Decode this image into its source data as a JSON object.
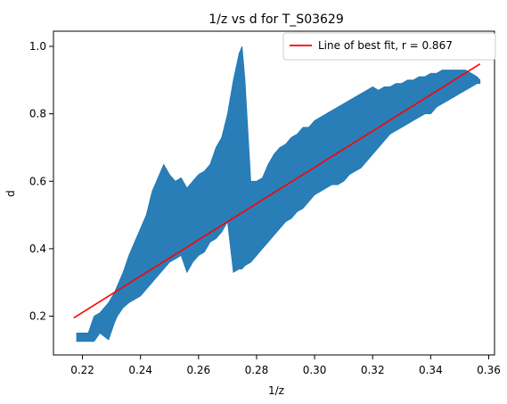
{
  "chart_data": {
    "type": "scatter",
    "title": "1/z vs d for T_S03629",
    "xlabel": "1/z",
    "ylabel": "d",
    "xlim": [
      0.21,
      0.362
    ],
    "ylim": [
      0.085,
      1.045
    ],
    "xticks": [
      0.22,
      0.24,
      0.26,
      0.28,
      0.3,
      0.32,
      0.34,
      0.36
    ],
    "xtick_labels": [
      "0.22",
      "0.24",
      "0.26",
      "0.28",
      "0.30",
      "0.32",
      "0.34",
      "0.36"
    ],
    "yticks": [
      0.2,
      0.4,
      0.6,
      0.8,
      1.0
    ],
    "ytick_labels": [
      "0.2",
      "0.4",
      "0.6",
      "0.8",
      "1.0"
    ],
    "grid": false,
    "legend_placement": "top-right",
    "series": [
      {
        "name": "",
        "kind": "scatter",
        "color": "#1f77b4",
        "x": [
          0.218,
          0.222,
          0.224,
          0.226,
          0.229,
          0.231,
          0.232,
          0.234,
          0.236,
          0.238,
          0.24,
          0.242,
          0.244,
          0.246,
          0.248,
          0.25,
          0.252,
          0.254,
          0.256,
          0.258,
          0.26,
          0.262,
          0.264,
          0.266,
          0.268,
          0.27,
          0.272,
          0.274,
          0.275,
          0.276,
          0.278,
          0.28,
          0.282,
          0.284,
          0.286,
          0.288,
          0.29,
          0.292,
          0.294,
          0.296,
          0.298,
          0.3,
          0.302,
          0.304,
          0.306,
          0.308,
          0.31,
          0.312,
          0.314,
          0.316,
          0.318,
          0.32,
          0.322,
          0.324,
          0.326,
          0.328,
          0.33,
          0.332,
          0.334,
          0.336,
          0.338,
          0.34,
          0.342,
          0.344,
          0.346,
          0.348,
          0.35,
          0.352,
          0.354,
          0.356,
          0.357
        ],
        "y_low": [
          0.125,
          0.125,
          0.125,
          0.15,
          0.13,
          0.18,
          0.2,
          0.225,
          0.24,
          0.25,
          0.26,
          0.28,
          0.3,
          0.32,
          0.34,
          0.36,
          0.37,
          0.38,
          0.33,
          0.36,
          0.38,
          0.39,
          0.42,
          0.43,
          0.45,
          0.48,
          0.33,
          0.34,
          0.34,
          0.35,
          0.36,
          0.38,
          0.4,
          0.42,
          0.44,
          0.46,
          0.48,
          0.49,
          0.51,
          0.52,
          0.54,
          0.56,
          0.57,
          0.58,
          0.59,
          0.59,
          0.6,
          0.62,
          0.63,
          0.64,
          0.66,
          0.68,
          0.7,
          0.72,
          0.74,
          0.75,
          0.76,
          0.77,
          0.78,
          0.79,
          0.8,
          0.8,
          0.82,
          0.83,
          0.84,
          0.85,
          0.86,
          0.87,
          0.88,
          0.89,
          0.89
        ],
        "y_high": [
          0.15,
          0.15,
          0.2,
          0.21,
          0.24,
          0.27,
          0.29,
          0.33,
          0.38,
          0.42,
          0.46,
          0.5,
          0.57,
          0.61,
          0.65,
          0.62,
          0.6,
          0.61,
          0.58,
          0.6,
          0.62,
          0.63,
          0.65,
          0.7,
          0.73,
          0.8,
          0.9,
          0.98,
          1.0,
          0.9,
          0.6,
          0.6,
          0.61,
          0.65,
          0.68,
          0.7,
          0.71,
          0.73,
          0.74,
          0.76,
          0.76,
          0.78,
          0.79,
          0.8,
          0.81,
          0.82,
          0.83,
          0.84,
          0.85,
          0.86,
          0.87,
          0.88,
          0.87,
          0.88,
          0.88,
          0.89,
          0.89,
          0.9,
          0.9,
          0.91,
          0.91,
          0.92,
          0.92,
          0.93,
          0.93,
          0.93,
          0.93,
          0.93,
          0.92,
          0.91,
          0.9
        ]
      },
      {
        "name": "Line of best fit, r = 0.867",
        "kind": "line",
        "color": "#ff0000",
        "x": [
          0.217,
          0.357
        ],
        "y": [
          0.195,
          0.948
        ]
      }
    ],
    "legend": {
      "label": "Line of best fit, r = 0.867",
      "color": "#ff0000"
    }
  }
}
